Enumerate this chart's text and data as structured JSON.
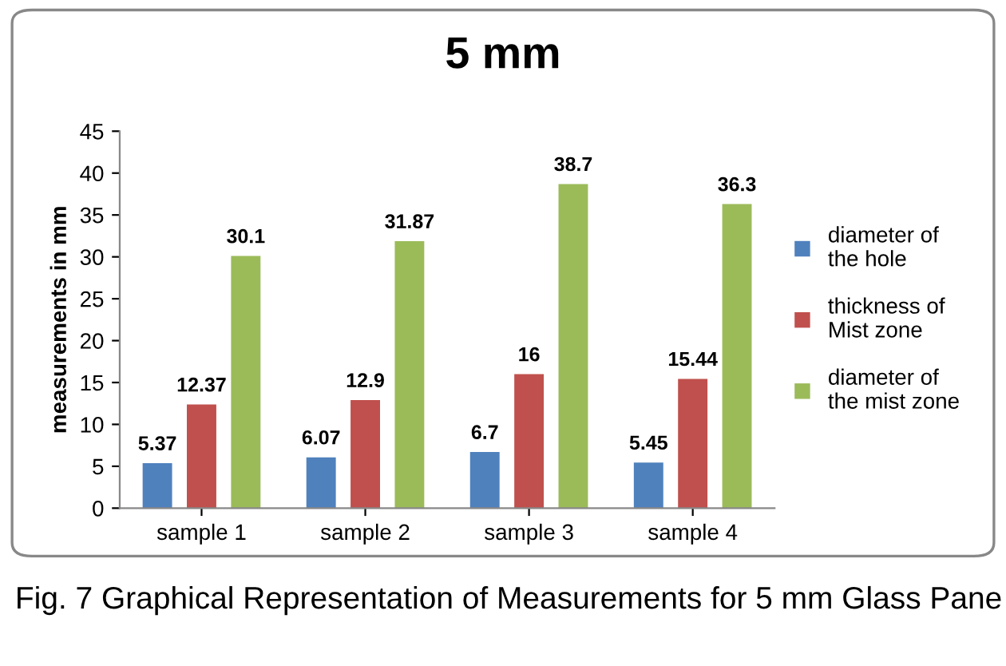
{
  "chart_data": {
    "type": "bar",
    "title": "5 mm",
    "ylabel": "measurements in mm",
    "categories": [
      "sample 1",
      "sample 2",
      "sample 3",
      "sample 4"
    ],
    "series": [
      {
        "name": "diameter of\nthe hole",
        "color": "#4f81bd",
        "values": [
          5.37,
          6.07,
          6.7,
          5.45
        ]
      },
      {
        "name": "thickness of\nMist zone",
        "color": "#c0504d",
        "values": [
          12.37,
          12.9,
          16,
          15.44
        ]
      },
      {
        "name": "diameter of\nthe mist zone",
        "color": "#9bbb59",
        "values": [
          30.1,
          31.87,
          38.7,
          36.3
        ]
      }
    ],
    "ylim": [
      0,
      45
    ],
    "yticks": [
      0,
      5,
      10,
      15,
      20,
      25,
      30,
      35,
      40,
      45
    ],
    "grid": false,
    "legend": "right",
    "data_labels": true,
    "annotations": [
      "Fig. 7 Graphical Representation of Measurements for 5 mm Glass Pane"
    ]
  }
}
